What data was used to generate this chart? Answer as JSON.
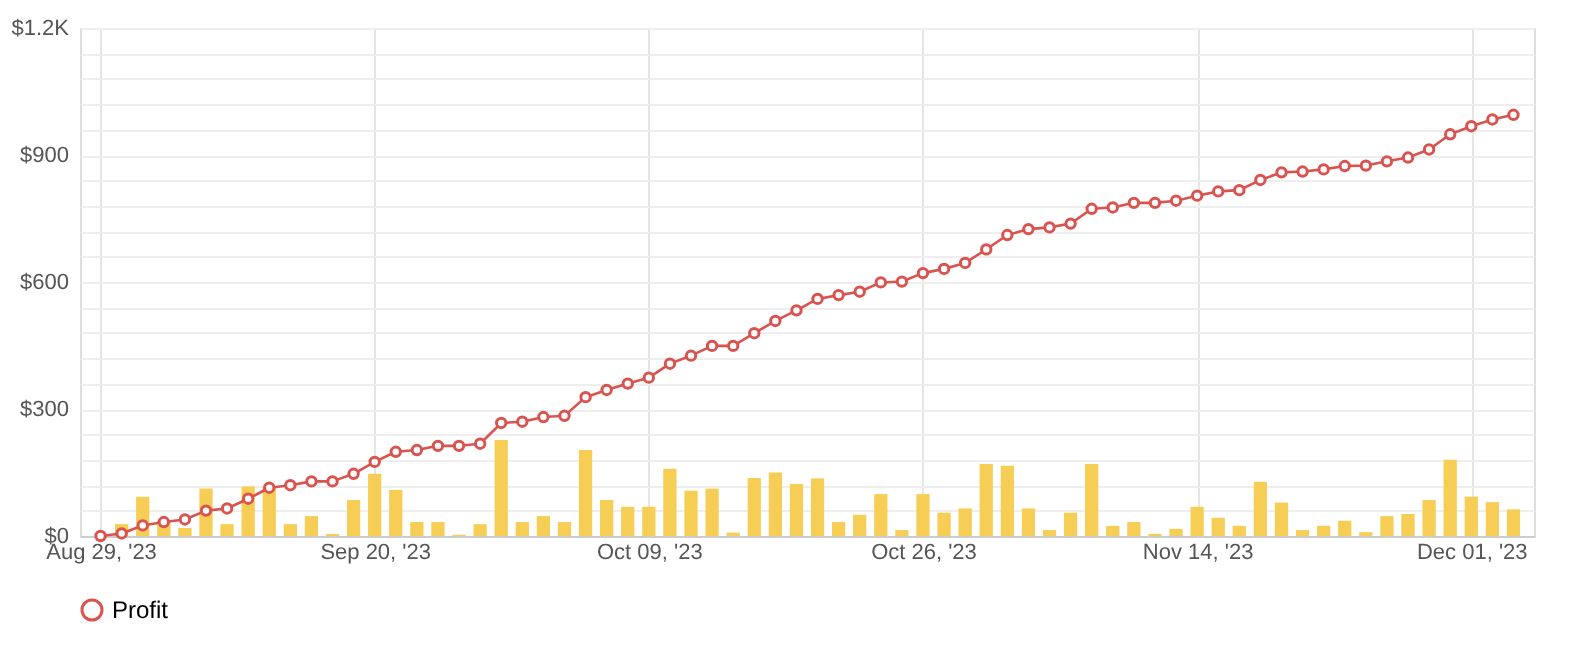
{
  "chart_data": {
    "type": "bar",
    "categories": [
      "Aug 29, '23",
      null,
      null,
      null,
      null,
      null,
      null,
      null,
      null,
      null,
      null,
      null,
      null,
      "Sep 20, '23",
      null,
      null,
      null,
      null,
      null,
      null,
      null,
      null,
      null,
      null,
      null,
      null,
      "Oct 09, '23",
      null,
      null,
      null,
      null,
      null,
      null,
      null,
      null,
      null,
      null,
      null,
      null,
      "Oct 26, '23",
      null,
      null,
      null,
      null,
      null,
      null,
      null,
      null,
      null,
      null,
      null,
      null,
      "Nov 14, '23",
      null,
      null,
      null,
      null,
      null,
      null,
      null,
      null,
      null,
      null,
      null,
      null,
      "Dec 01, '23",
      null,
      null
    ],
    "ylim": [
      0,
      1200
    ],
    "yticks": [
      {
        "value": 0,
        "label": "$0"
      },
      {
        "value": 60,
        "label": null
      },
      {
        "value": 120,
        "label": null
      },
      {
        "value": 180,
        "label": null
      },
      {
        "value": 240,
        "label": null
      },
      {
        "value": 300,
        "label": "$300"
      },
      {
        "value": 360,
        "label": null
      },
      {
        "value": 420,
        "label": null
      },
      {
        "value": 480,
        "label": null
      },
      {
        "value": 540,
        "label": null
      },
      {
        "value": 600,
        "label": "$600"
      },
      {
        "value": 660,
        "label": null
      },
      {
        "value": 720,
        "label": null
      },
      {
        "value": 780,
        "label": null
      },
      {
        "value": 840,
        "label": null
      },
      {
        "value": 900,
        "label": "$900"
      },
      {
        "value": 960,
        "label": null
      },
      {
        "value": 1020,
        "label": null
      },
      {
        "value": 1080,
        "label": null
      },
      {
        "value": 1140,
        "label": null
      },
      {
        "value": 1200,
        "label": "$1.2K"
      }
    ],
    "grid": true,
    "legend": "bottom",
    "series": [
      {
        "type": "bar",
        "color": "#f6cd55",
        "values": [
          0,
          28,
          93,
          35,
          19,
          112,
          28,
          117,
          117,
          28,
          47,
          5,
          85,
          147,
          109,
          33,
          33,
          3,
          28,
          227,
          33,
          47,
          33,
          203,
          85,
          69,
          69,
          159,
          107,
          112,
          8,
          137,
          150,
          123,
          136,
          33,
          50,
          99,
          14,
          99,
          55,
          65,
          170,
          166,
          65,
          14,
          55,
          170,
          24,
          33,
          5,
          17,
          69,
          43,
          24,
          128,
          79,
          14,
          24,
          36,
          9,
          47,
          52,
          85,
          180,
          93,
          80,
          63
        ]
      },
      {
        "type": "line",
        "name": "Profit",
        "color": "#d9534f",
        "marker": "circle",
        "values": [
          0,
          6,
          25,
          33,
          39,
          60,
          65,
          88,
          114,
          120,
          129,
          129,
          147,
          175,
          199,
          203,
          213,
          213,
          218,
          267,
          270,
          281,
          284,
          328,
          345,
          360,
          374,
          407,
          426,
          449,
          449,
          479,
          508,
          533,
          560,
          569,
          577,
          599,
          601,
          621,
          631,
          645,
          677,
          711,
          725,
          729,
          738,
          773,
          776,
          787,
          787,
          792,
          804,
          814,
          817,
          841,
          859,
          861,
          866,
          874,
          875,
          885,
          894,
          913,
          949,
          968,
          984,
          995
        ]
      }
    ]
  }
}
